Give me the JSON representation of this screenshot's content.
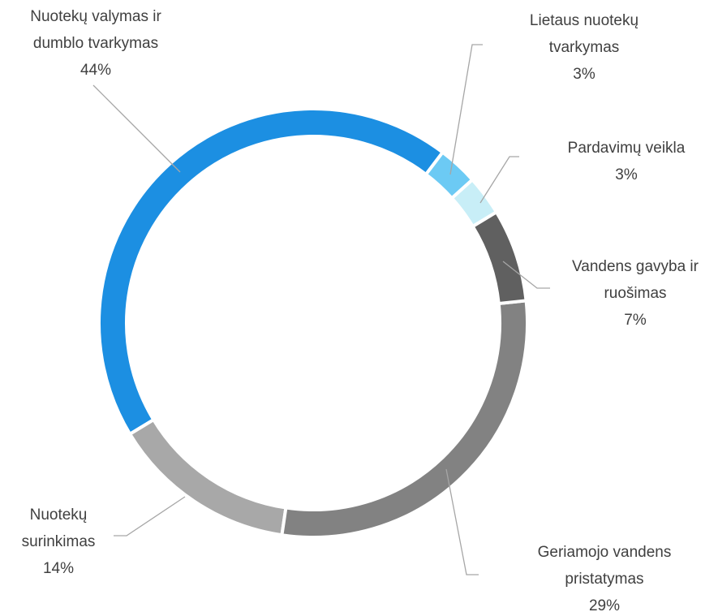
{
  "chart_data": {
    "type": "donut",
    "categories": [
      "Lietaus nuotekų tvarkymas",
      "Pardavimų veikla",
      "Vandens gavyba ir ruošimas",
      "Geriamojo vandens pristatymas",
      "Nuotekų surinkimas",
      "Nuotekų valymas ir dumblo tvarkymas"
    ],
    "values": [
      3,
      3,
      7,
      29,
      14,
      44
    ],
    "value_labels": [
      "3%",
      "3%",
      "7%",
      "29%",
      "14%",
      "44%"
    ],
    "colors": [
      "#6ccaf4",
      "#c8eef7",
      "#606060",
      "#828282",
      "#a8a8a8",
      "#1c8fe2"
    ]
  }
}
